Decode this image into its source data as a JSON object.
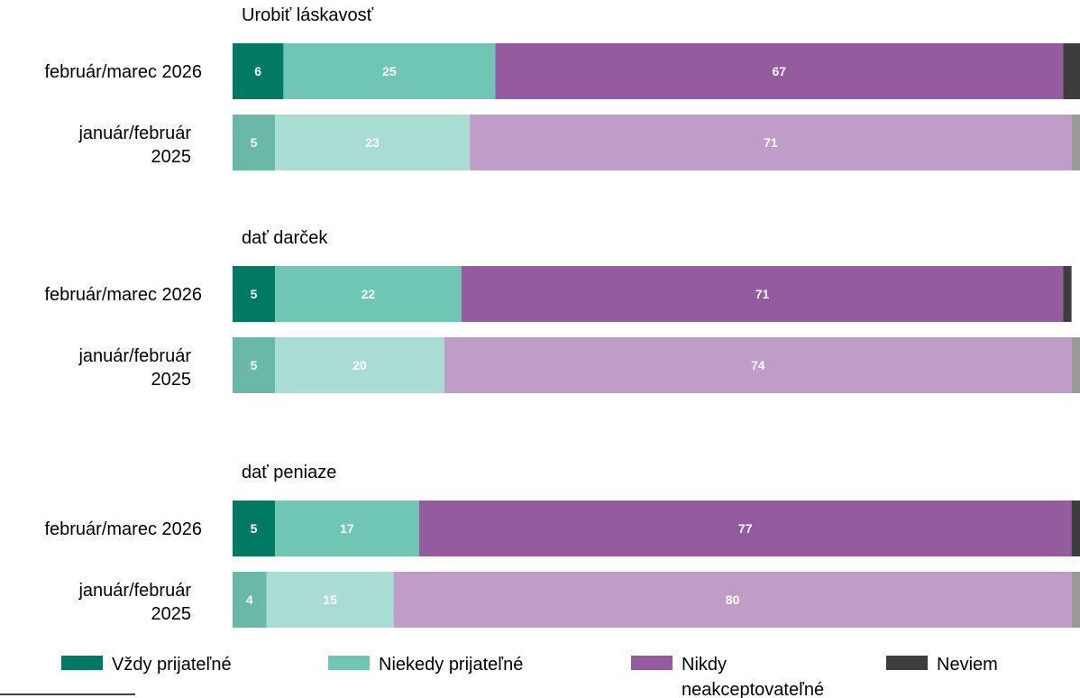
{
  "chart_data": {
    "type": "bar",
    "orientation": "horizontal",
    "stacked": true,
    "xlim": [
      0,
      100
    ],
    "legend_position": "bottom",
    "categories_labels": {
      "2026": [
        "február/marec 2026"
      ],
      "2025": [
        "január/február",
        "2025"
      ]
    },
    "series": [
      {
        "name": "Vždy prijateľné",
        "color": "#007a63",
        "color_2025": "#6ab8a7"
      },
      {
        "name": "Niekedy prijateľné",
        "color": "#6fc6b5",
        "color_2025": "#a9ddd3"
      },
      {
        "name": "Nikdy neakceptovateľné",
        "color": "#945b9e",
        "color_2025": "#c09dc8"
      },
      {
        "name": "Neviem",
        "color": "#3d3d3d",
        "color_2025": "#9a9a9a"
      }
    ],
    "groups": [
      {
        "title": "Urobiť láskavosť",
        "rows": [
          {
            "period": "2026",
            "values": [
              6,
              25,
              67,
              2
            ]
          },
          {
            "period": "2025",
            "values": [
              5,
              23,
              71,
              1
            ]
          }
        ]
      },
      {
        "title": "dať darček",
        "rows": [
          {
            "period": "2026",
            "values": [
              5,
              22,
              71,
              1
            ]
          },
          {
            "period": "2025",
            "values": [
              5,
              20,
              74,
              1
            ]
          }
        ]
      },
      {
        "title": "dať peniaze",
        "rows": [
          {
            "period": "2026",
            "values": [
              5,
              17,
              77,
              1
            ]
          },
          {
            "period": "2025",
            "values": [
              4,
              15,
              80,
              1
            ]
          }
        ]
      }
    ],
    "legend": [
      {
        "lines": [
          "Vždy prijateľné"
        ]
      },
      {
        "lines": [
          "Niekedy prijateľné"
        ]
      },
      {
        "lines": [
          "Nikdy",
          "neakceptovateľné"
        ]
      },
      {
        "lines": [
          "Neviem"
        ]
      }
    ]
  }
}
